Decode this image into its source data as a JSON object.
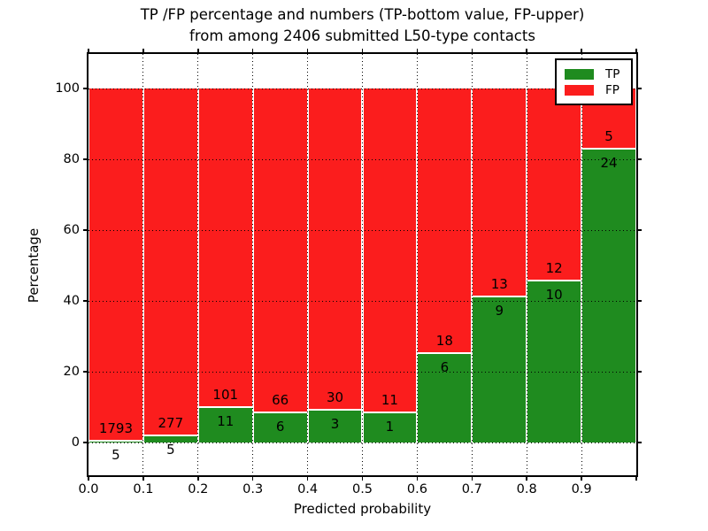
{
  "figure": {
    "title_line1": "TP /FP percentage and numbers (TP-bottom value, FP-upper)",
    "title_line2": "from among 2406 submitted L50-type contacts"
  },
  "legend": {
    "items": [
      {
        "label": "TP",
        "color": "#1f8b1f"
      },
      {
        "label": "FP",
        "color": "#fb1d1d"
      }
    ]
  },
  "chart_data": {
    "type": "bar",
    "stacked": true,
    "title": "TP /FP percentage and numbers (TP-bottom value, FP-upper) from among 2406 submitted L50-type contacts",
    "xlabel": "Predicted probability",
    "ylabel": "Percentage",
    "x_tick_labels": [
      "0.0",
      "0.1",
      "0.2",
      "0.3",
      "0.4",
      "0.5",
      "0.6",
      "0.7",
      "0.8",
      "0.9"
    ],
    "y_ticks": [
      0,
      20,
      40,
      60,
      80,
      100
    ],
    "y_tick_labels": [
      "0",
      "20",
      "40",
      "60",
      "80",
      "100"
    ],
    "xlim": [
      0.0,
      1.0
    ],
    "ylim": [
      -9.25,
      110
    ],
    "grid": "dotted",
    "legend_position": "upper right",
    "bins": [
      [
        0.0,
        0.1
      ],
      [
        0.1,
        0.2
      ],
      [
        0.2,
        0.3
      ],
      [
        0.3,
        0.4
      ],
      [
        0.4,
        0.5
      ],
      [
        0.5,
        0.6
      ],
      [
        0.6,
        0.7
      ],
      [
        0.7,
        0.8
      ],
      [
        0.8,
        0.9
      ],
      [
        0.9,
        1.0
      ]
    ],
    "series": [
      {
        "name": "TP",
        "color": "#1f8b1f",
        "counts": [
          5,
          5,
          11,
          6,
          3,
          1,
          6,
          9,
          10,
          24
        ]
      },
      {
        "name": "FP",
        "color": "#fb1d1d",
        "counts": [
          1793,
          277,
          101,
          66,
          30,
          11,
          18,
          13,
          12,
          5
        ]
      }
    ],
    "bars_sum_to_percent": 100,
    "total_contacts": 2406
  }
}
